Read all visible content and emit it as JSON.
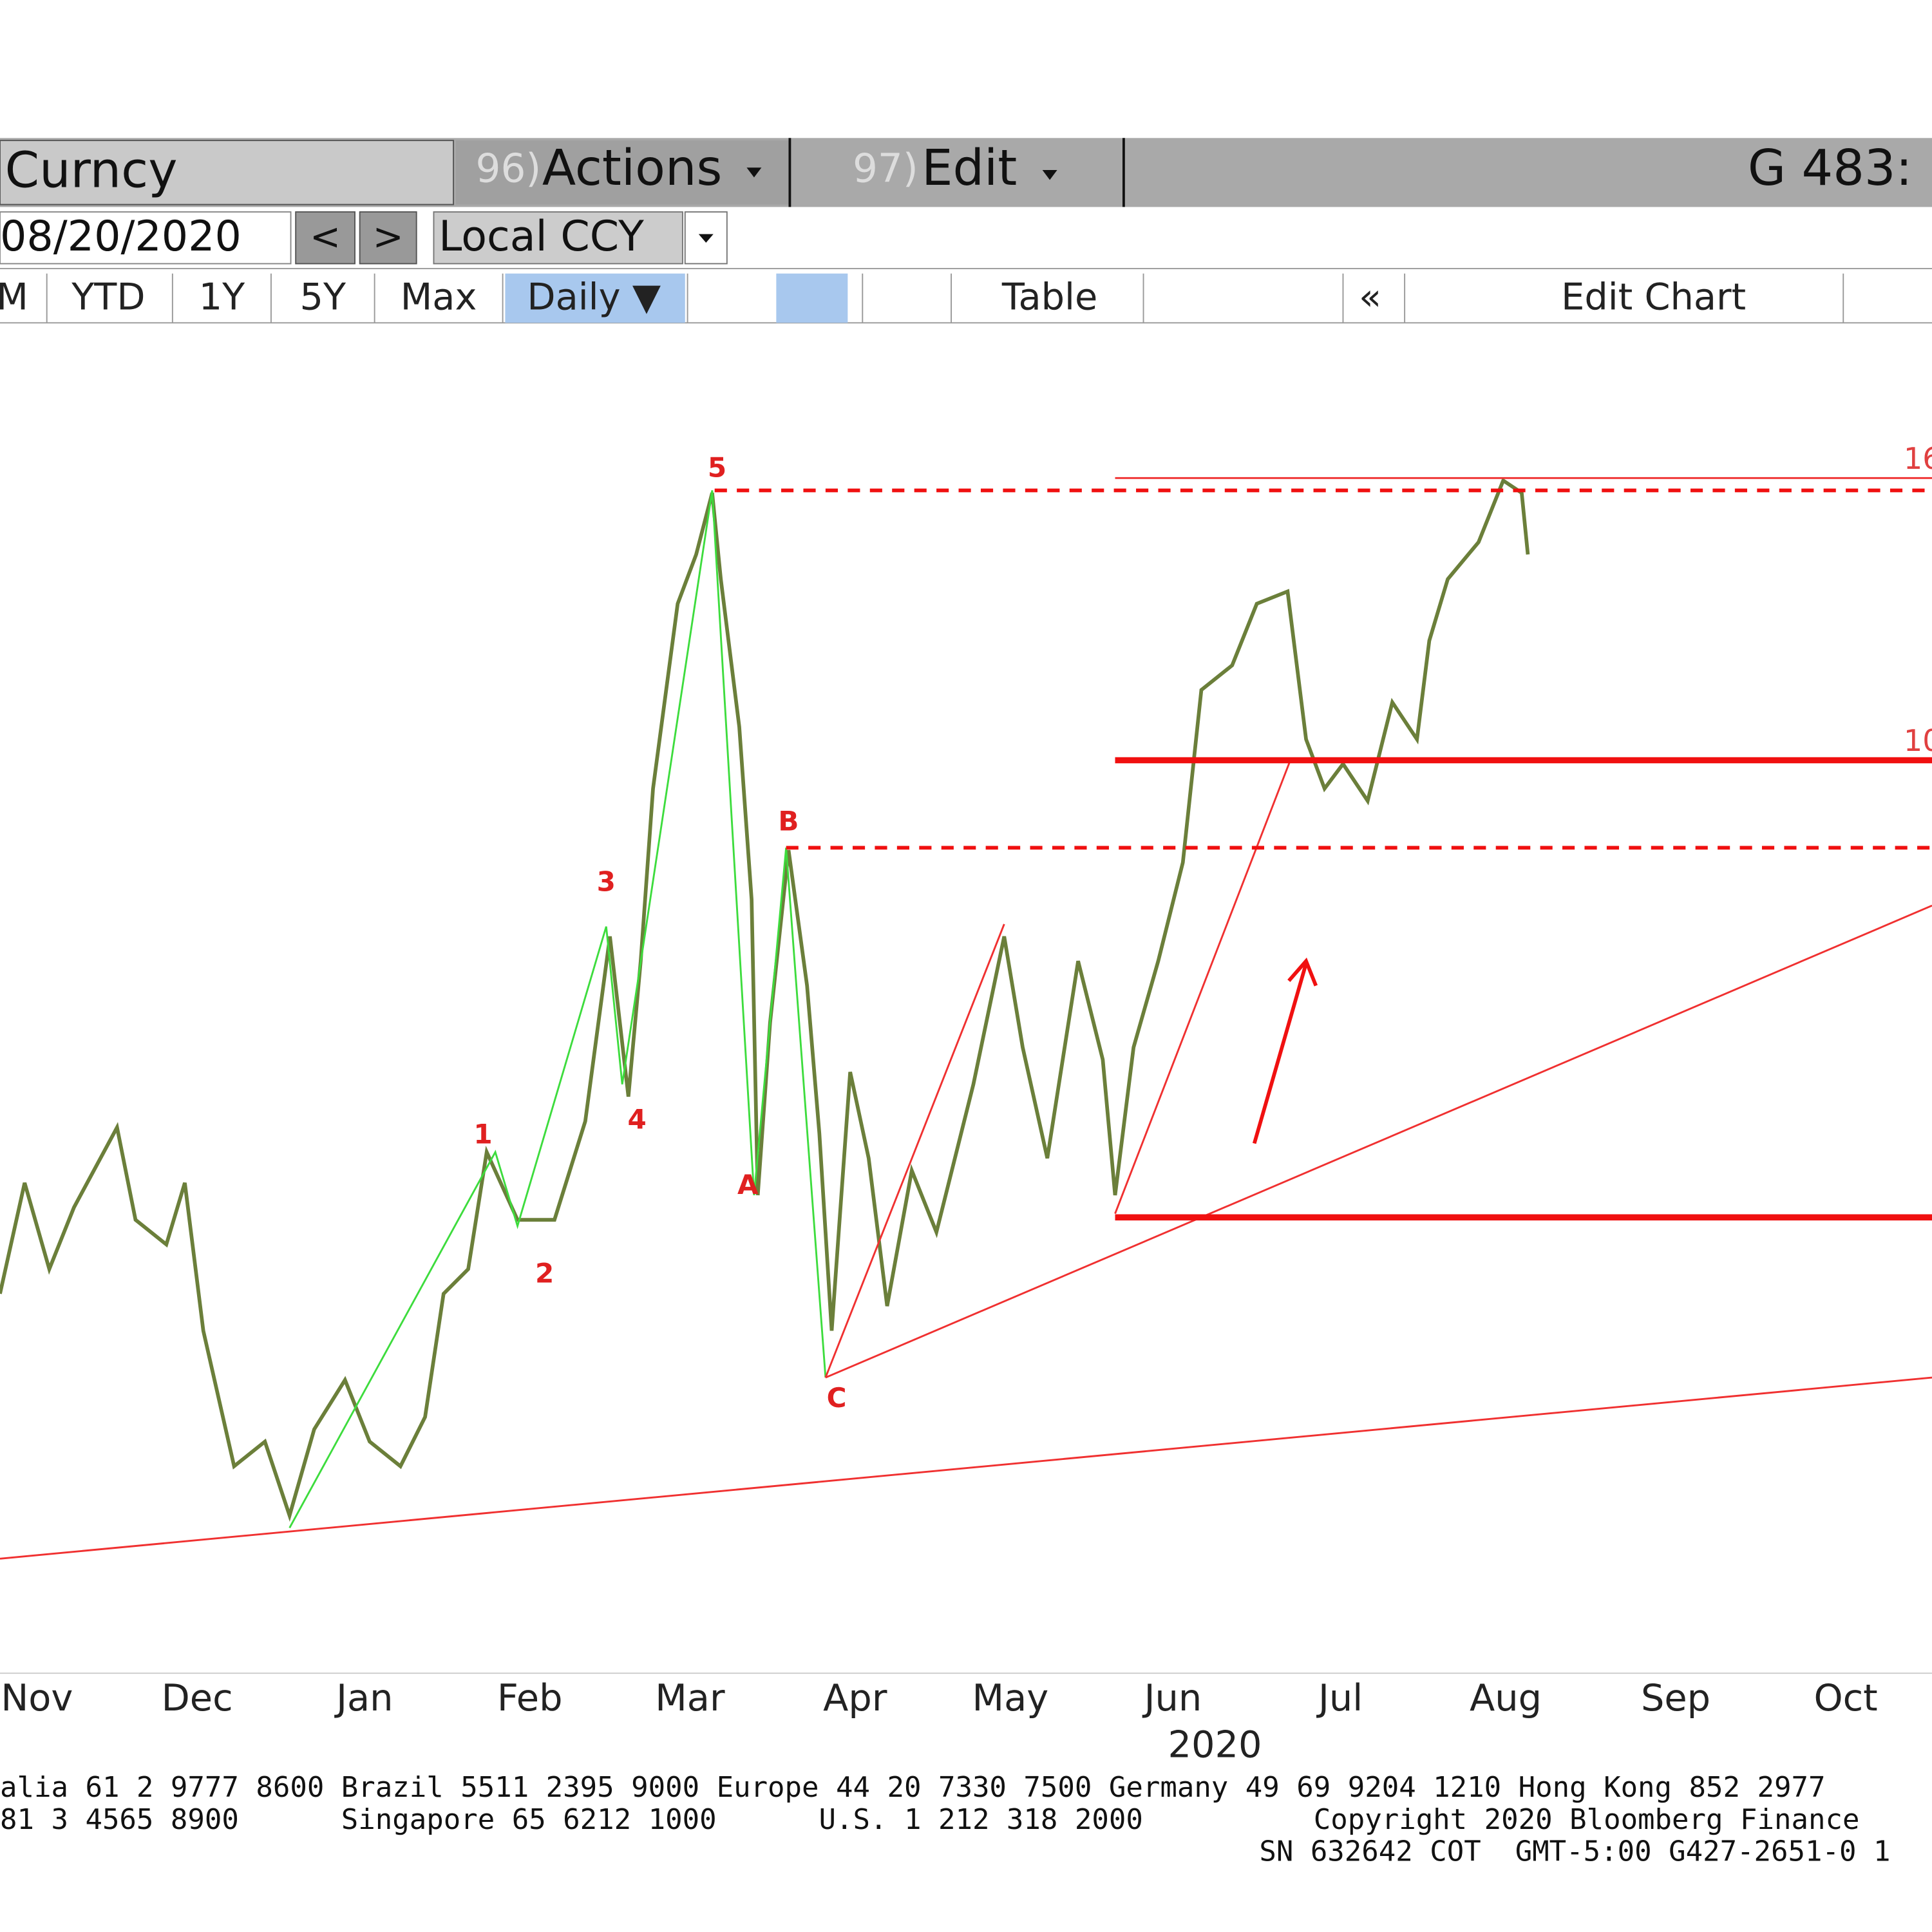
{
  "toolbar": {
    "security": "Curncy",
    "actions_num": "96)",
    "actions": "Actions",
    "edit_num": "97)",
    "edit": "Edit",
    "code": "G 483:"
  },
  "controls": {
    "date": "08/20/2020",
    "prev": "<",
    "next": ">",
    "currency": "Local CCY"
  },
  "tabs": [
    "M",
    "YTD",
    "1Y",
    "5Y",
    "Max",
    "Daily ▼",
    "Table",
    "«",
    "Edit Chart"
  ],
  "annotations": {
    "wave": [
      "1",
      "2",
      "3",
      "4",
      "5",
      "A",
      "B",
      "C"
    ],
    "levels": [
      "16",
      "10"
    ]
  },
  "x_axis": {
    "months": [
      "Nov",
      "Dec",
      "Jan",
      "Feb",
      "Mar",
      "Apr",
      "May",
      "Jun",
      "Jul",
      "Aug",
      "Sep",
      "Oct"
    ],
    "year": "2020"
  },
  "footer": [
    "alia 61 2 9777 8600 Brazil 5511 2395 9000 Europe 44 20 7330 7500 Germany 49 69 9204 1210 Hong Kong 852 2977",
    "81 3 4565 8900      Singapore 65 6212 1000      U.S. 1 212 318 2000          Copyright 2020 Bloomberg Finance",
    "SN 632642 COT  GMT-5:00 G427-2651-0 1"
  ]
}
